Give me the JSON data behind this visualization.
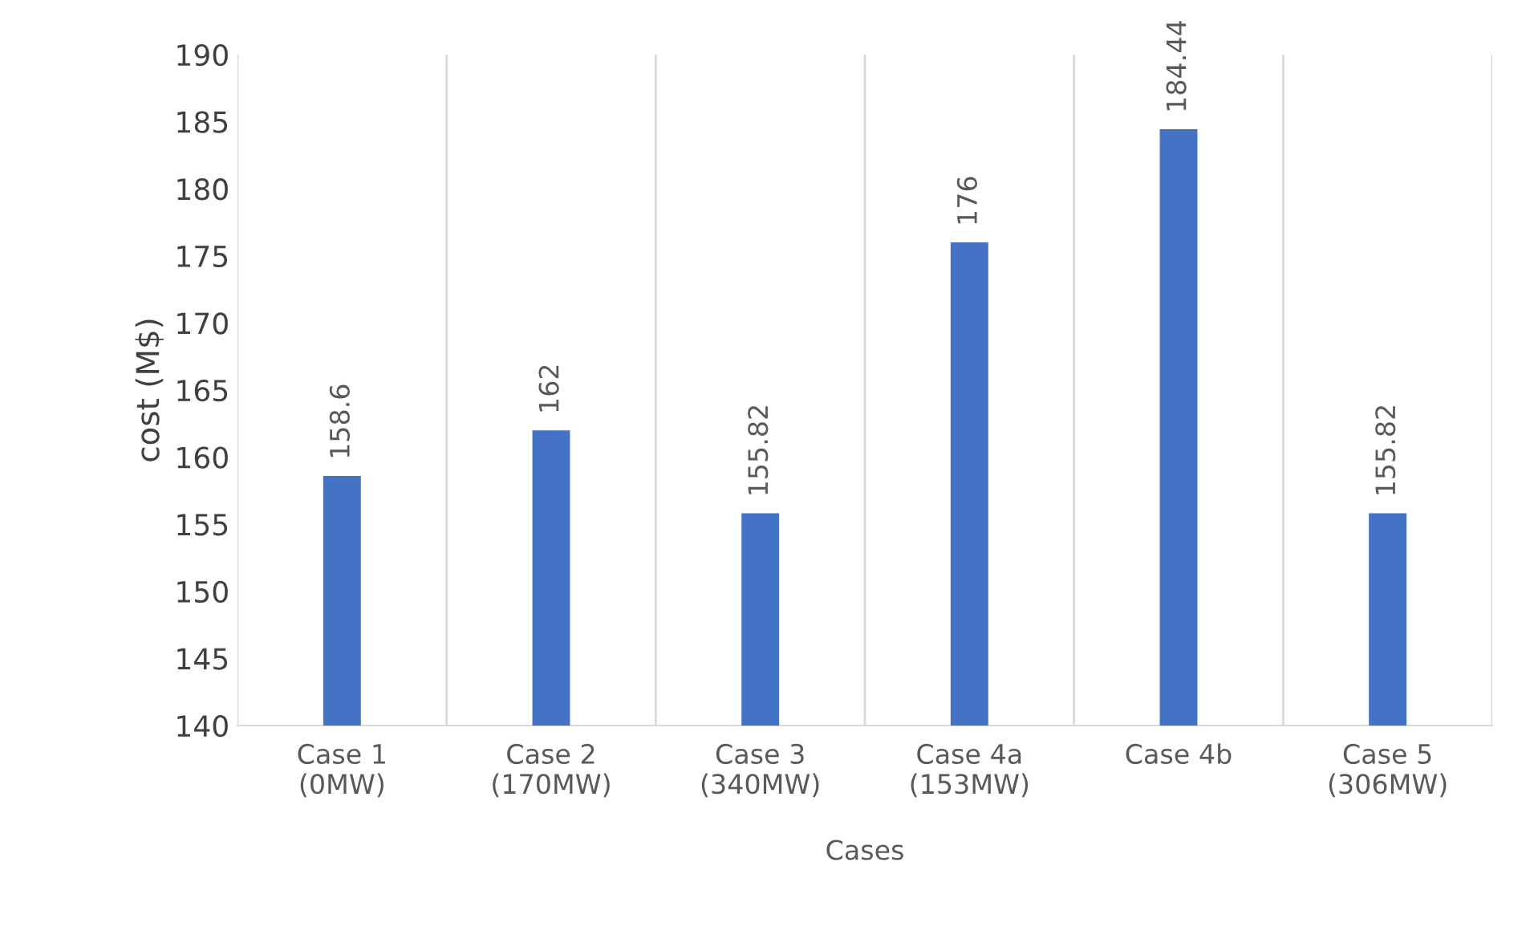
{
  "chart_data": {
    "type": "bar",
    "xlabel": "Cases",
    "ylabel": "cost (M$)",
    "categories": [
      "Case 1\n(0MW)",
      "Case 2\n(170MW)",
      "Case 3\n(340MW)",
      "Case 4a\n(153MW)",
      "Case 4b",
      "Case 5\n(306MW)"
    ],
    "values": [
      158.6,
      162,
      155.82,
      176,
      184.44,
      155.82
    ],
    "color": "#4472c4",
    "ylim": [
      140,
      190
    ],
    "yticks": [
      140,
      145,
      150,
      155,
      160,
      165,
      170,
      175,
      180,
      185,
      190
    ],
    "grid": "x",
    "data_labels": true
  }
}
